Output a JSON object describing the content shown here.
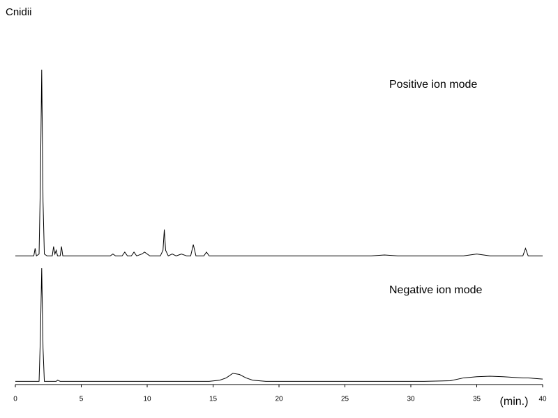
{
  "chart_data": {
    "type": "line",
    "title": "Cnidii",
    "x_label": "(min.)",
    "xlim": [
      0,
      40
    ],
    "xticks": [
      0,
      5,
      10,
      15,
      20,
      25,
      30,
      35,
      40
    ],
    "ylim": [
      0,
      100
    ],
    "x": [
      0,
      1.2,
      1.4,
      1.5,
      1.6,
      1.8,
      1.9,
      2.0,
      2.1,
      2.2,
      2.4,
      2.8,
      2.9,
      3.0,
      3.1,
      3.2,
      3.4,
      3.5,
      3.6,
      4.5,
      5.5,
      6.5,
      7.2,
      7.4,
      7.6,
      8.1,
      8.3,
      8.5,
      8.8,
      9.0,
      9.2,
      9.6,
      9.8,
      10.2,
      11.0,
      11.2,
      11.3,
      11.4,
      11.6,
      11.9,
      12.2,
      12.6,
      13.0,
      13.3,
      13.5,
      13.7,
      14.3,
      14.5,
      14.7,
      15.5,
      16.0,
      16.5,
      17.0,
      17.5,
      18.0,
      19,
      21,
      23,
      25,
      27,
      28,
      29,
      31,
      33,
      34,
      35,
      36,
      37,
      38.5,
      38.7,
      38.9,
      40
    ],
    "series": [
      {
        "name": "Positive ion mode",
        "color": "#000000",
        "values": [
          1,
          1,
          1,
          5,
          1,
          2,
          40,
          100,
          30,
          2,
          1,
          1,
          6,
          2,
          4,
          1,
          1,
          6,
          1,
          1,
          1,
          1,
          1,
          2,
          1,
          1,
          3,
          1,
          1,
          3,
          1,
          2,
          3,
          1,
          1,
          4,
          15,
          4,
          1,
          2,
          1,
          2,
          1,
          1,
          7,
          1,
          1,
          3,
          1,
          1,
          1,
          1,
          1,
          1,
          1,
          1,
          1,
          1,
          1,
          1,
          1.5,
          1,
          1,
          1,
          1,
          2,
          1,
          1,
          1,
          5,
          1,
          1
        ]
      },
      {
        "name": "Negative ion mode",
        "color": "#000000",
        "values": [
          1,
          1,
          1,
          1,
          1,
          1,
          40,
          100,
          30,
          1,
          1,
          1,
          1,
          1,
          1,
          2,
          1,
          1,
          1,
          1,
          1,
          1,
          1,
          1,
          1,
          1,
          1,
          1,
          1,
          1,
          1,
          1,
          1,
          1,
          1,
          1,
          1,
          1,
          1,
          1,
          1,
          1,
          1,
          1,
          1,
          1,
          1,
          1,
          1,
          2,
          4,
          8,
          7,
          4,
          2,
          1,
          1,
          1,
          1,
          1,
          1,
          1,
          1,
          1.5,
          4,
          5,
          5.5,
          5,
          4,
          4,
          4,
          3
        ]
      }
    ]
  }
}
